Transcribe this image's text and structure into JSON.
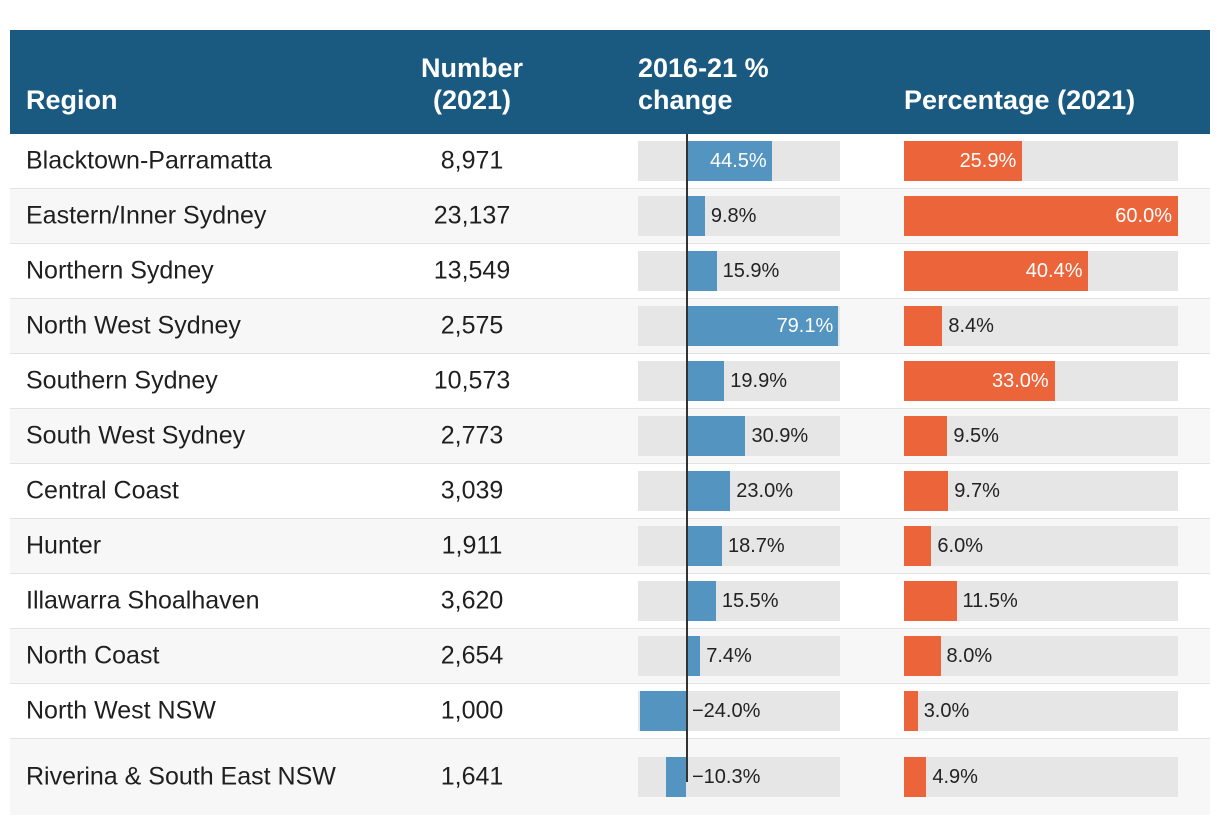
{
  "header": {
    "region": "Region",
    "number_line1": "Number",
    "number_line2": "(2021)",
    "change_line1": "2016-21 %",
    "change_line2": "change",
    "percentage": "Percentage (2021)"
  },
  "rows": [
    {
      "region": "Blacktown-Parramatta",
      "number": "8,971",
      "change": 44.5,
      "change_label": "44.5%",
      "percentage": 25.9,
      "percentage_label": "25.9%"
    },
    {
      "region": "Eastern/Inner Sydney",
      "number": "23,137",
      "change": 9.8,
      "change_label": "9.8%",
      "percentage": 60.0,
      "percentage_label": "60.0%"
    },
    {
      "region": "Northern Sydney",
      "number": "13,549",
      "change": 15.9,
      "change_label": "15.9%",
      "percentage": 40.4,
      "percentage_label": "40.4%"
    },
    {
      "region": "North West Sydney",
      "number": "2,575",
      "change": 79.1,
      "change_label": "79.1%",
      "percentage": 8.4,
      "percentage_label": "8.4%"
    },
    {
      "region": "Southern Sydney",
      "number": "10,573",
      "change": 19.9,
      "change_label": "19.9%",
      "percentage": 33.0,
      "percentage_label": "33.0%"
    },
    {
      "region": "South West Sydney",
      "number": "2,773",
      "change": 30.9,
      "change_label": "30.9%",
      "percentage": 9.5,
      "percentage_label": "9.5%"
    },
    {
      "region": "Central Coast",
      "number": "3,039",
      "change": 23.0,
      "change_label": "23.0%",
      "percentage": 9.7,
      "percentage_label": "9.7%"
    },
    {
      "region": "Hunter",
      "number": "1,911",
      "change": 18.7,
      "change_label": "18.7%",
      "percentage": 6.0,
      "percentage_label": "6.0%"
    },
    {
      "region": "Illawarra Shoalhaven",
      "number": "3,620",
      "change": 15.5,
      "change_label": "15.5%",
      "percentage": 11.5,
      "percentage_label": "11.5%"
    },
    {
      "region": "North Coast",
      "number": "2,654",
      "change": 7.4,
      "change_label": "7.4%",
      "percentage": 8.0,
      "percentage_label": "8.0%"
    },
    {
      "region": "North West NSW",
      "number": "1,000",
      "change": -24.0,
      "change_label": "−24.0%",
      "percentage": 3.0,
      "percentage_label": "3.0%"
    },
    {
      "region": "Riverina & South East NSW",
      "number": "1,641",
      "change": -10.3,
      "change_label": "−10.3%",
      "percentage": 4.9,
      "percentage_label": "4.9%"
    }
  ],
  "chart_data": {
    "type": "table",
    "columns": [
      "Region",
      "Number (2021)",
      "2016-21 % change",
      "Percentage (2021)"
    ],
    "change_range": [
      -25,
      80
    ],
    "percentage_range": [
      0,
      60
    ],
    "colors": {
      "change_bar": "#5394c0",
      "percentage_bar": "#ec643a",
      "header_bg": "#1a5a80",
      "track": "#e6e6e6"
    }
  }
}
